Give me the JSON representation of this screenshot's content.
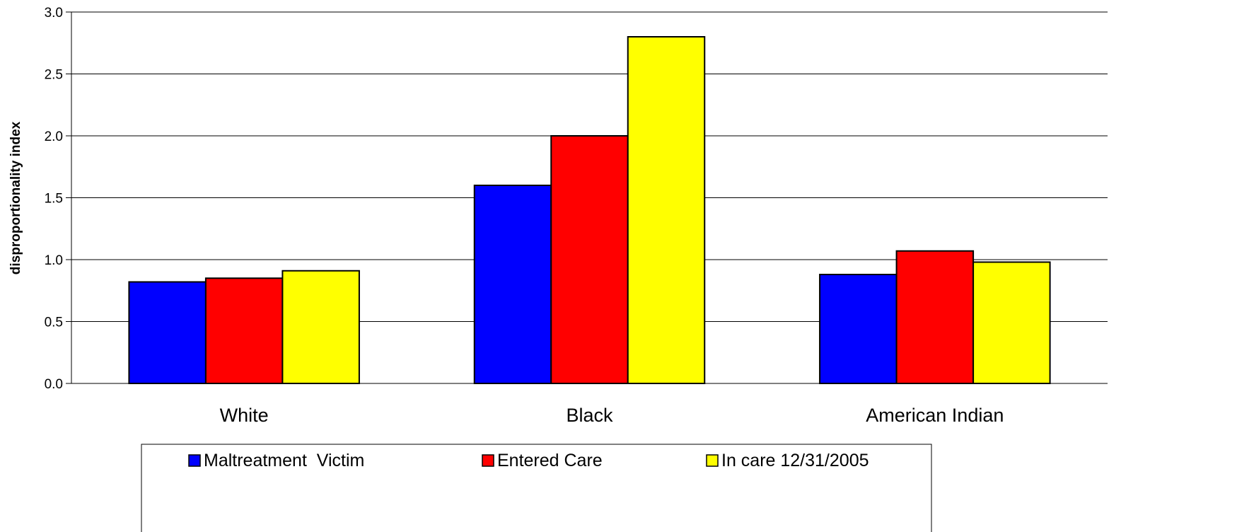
{
  "chart_data": {
    "type": "bar",
    "title": "",
    "xlabel": "",
    "ylabel": "disproportionality index",
    "categories": [
      "White",
      "Black",
      "American Indian"
    ],
    "series": [
      {
        "name": "Maltreatment  Victim",
        "color": "#0000FF",
        "values": [
          0.82,
          1.6,
          0.88
        ]
      },
      {
        "name": "Entered Care",
        "color": "#FF0000",
        "values": [
          0.85,
          2.0,
          1.07
        ]
      },
      {
        "name": "In care 12/31/2005",
        "color": "#FFFF00",
        "values": [
          0.91,
          2.8,
          0.98
        ]
      }
    ],
    "ylim": [
      0,
      3.0
    ],
    "yticks": [
      "0.0",
      "0.5",
      "1.0",
      "1.5",
      "2.0",
      "2.5",
      "3.0"
    ],
    "grid": true,
    "legend": "bottom"
  }
}
